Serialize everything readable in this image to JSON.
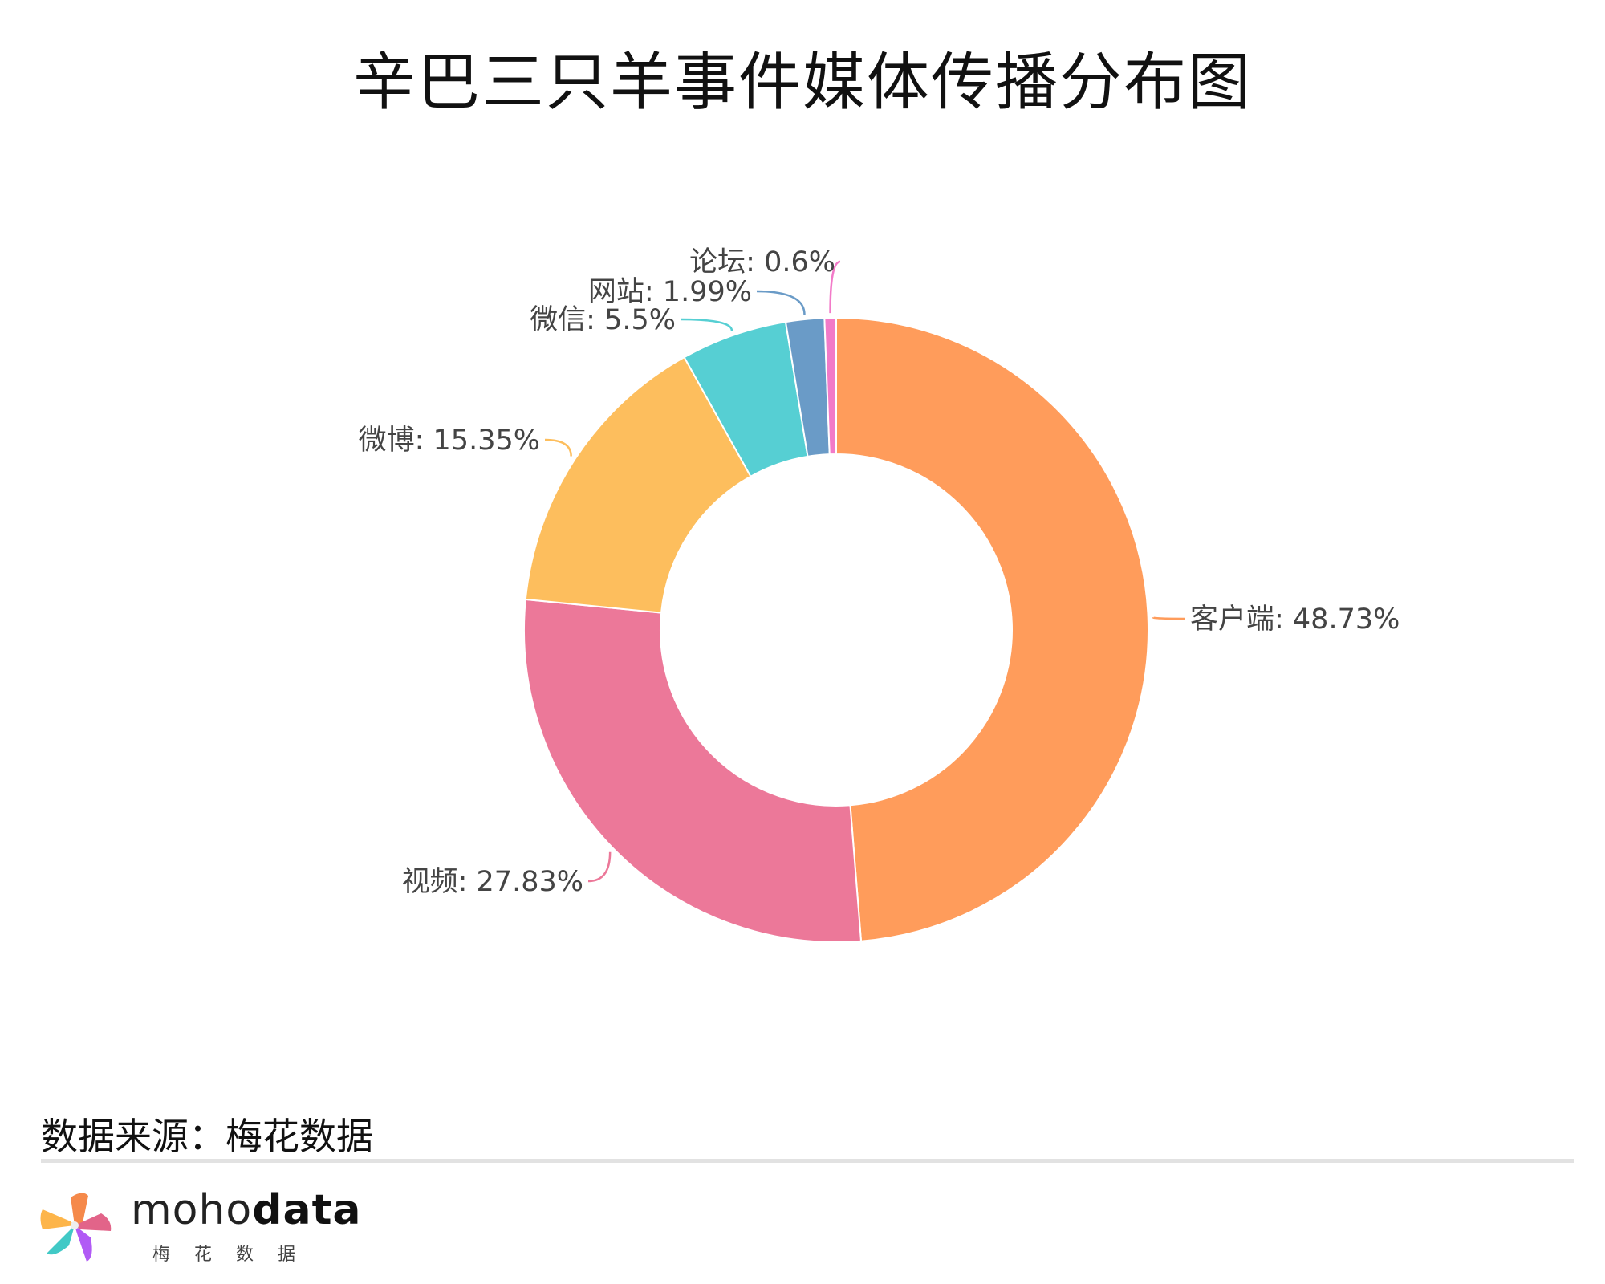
{
  "chart_data": {
    "type": "pie",
    "variant": "donut",
    "title": "辛巴三只羊事件媒体传播分布图",
    "categories": [
      "客户端",
      "视频",
      "微博",
      "微信",
      "网站",
      "论坛"
    ],
    "values": [
      48.73,
      27.83,
      15.35,
      5.5,
      1.99,
      0.6
    ],
    "unit": "%",
    "labels": [
      "客户端: 48.73%",
      "视频: 27.83%",
      "微博: 15.35%",
      "微信: 5.5%",
      "网站: 1.99%",
      "论坛: 0.6%"
    ],
    "colors": [
      "#FF9C5B",
      "#EC7899",
      "#FDBE5D",
      "#56CFD3",
      "#6A9BC7",
      "#F27AC8"
    ]
  },
  "footer": {
    "source": "数据来源：梅花数据"
  },
  "logo": {
    "brand_light": "moho",
    "brand_bold": "data",
    "brand_sub": "梅花数据"
  }
}
